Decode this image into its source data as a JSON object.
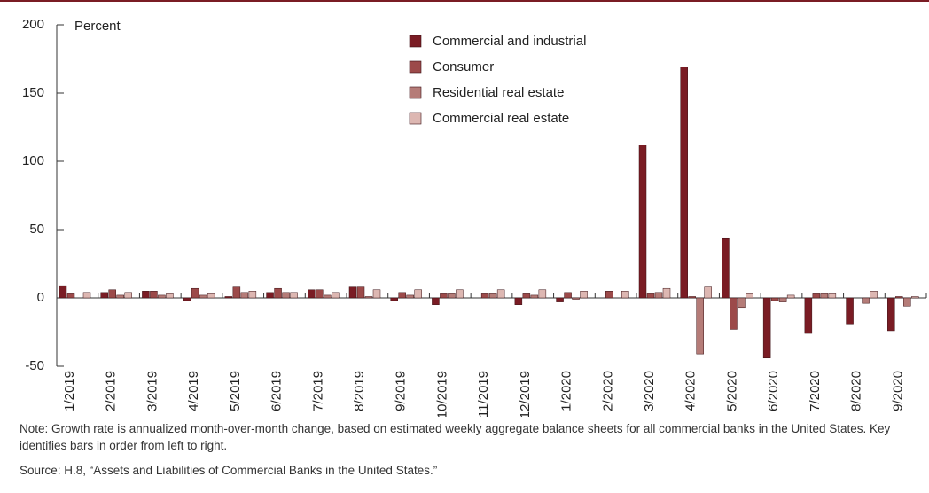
{
  "chart_data": {
    "type": "bar",
    "y_label": "Percent",
    "categories": [
      "1/2019",
      "2/2019",
      "3/2019",
      "4/2019",
      "5/2019",
      "6/2019",
      "7/2019",
      "8/2019",
      "9/2019",
      "10/2019",
      "11/2019",
      "12/2019",
      "1/2020",
      "2/2020",
      "3/2020",
      "4/2020",
      "5/2020",
      "6/2020",
      "7/2020",
      "8/2020",
      "9/2020"
    ],
    "series": [
      {
        "name": "Commercial and industrial",
        "color": "#7a1c24",
        "values": [
          9,
          4,
          5,
          -2,
          1,
          4,
          6,
          8,
          -2,
          -5,
          0,
          -5,
          -3,
          0,
          112,
          169,
          44,
          -44,
          -26,
          -19,
          -24
        ]
      },
      {
        "name": "Consumer",
        "color": "#9c4a4a",
        "values": [
          3,
          6,
          5,
          7,
          8,
          7,
          6,
          8,
          4,
          3,
          3,
          3,
          4,
          5,
          3,
          1,
          -23,
          -2,
          3,
          0,
          1
        ]
      },
      {
        "name": "Residential real estate",
        "color": "#b57c78",
        "values": [
          0,
          2,
          2,
          2,
          4,
          4,
          2,
          1,
          2,
          3,
          3,
          2,
          -1,
          0,
          4,
          -41,
          -7,
          -3,
          3,
          -4,
          -6
        ]
      },
      {
        "name": "Commercial real estate",
        "color": "#ddb7b2",
        "values": [
          4,
          4,
          3,
          3,
          5,
          4,
          4,
          6,
          6,
          6,
          6,
          6,
          5,
          5,
          7,
          8,
          3,
          2,
          3,
          5,
          1
        ]
      }
    ],
    "ylim": [
      -50,
      200
    ],
    "yticks": [
      -50,
      0,
      50,
      100,
      150,
      200
    ],
    "note": "Note: Growth rate is annualized month-over-month change, based on estimated weekly aggregate balance sheets for all commercial banks in the United States. Key identifies bars in order from left to right.",
    "source": "Source: H.8, “Assets and Liabilities of Commercial Banks in the United States.”"
  }
}
